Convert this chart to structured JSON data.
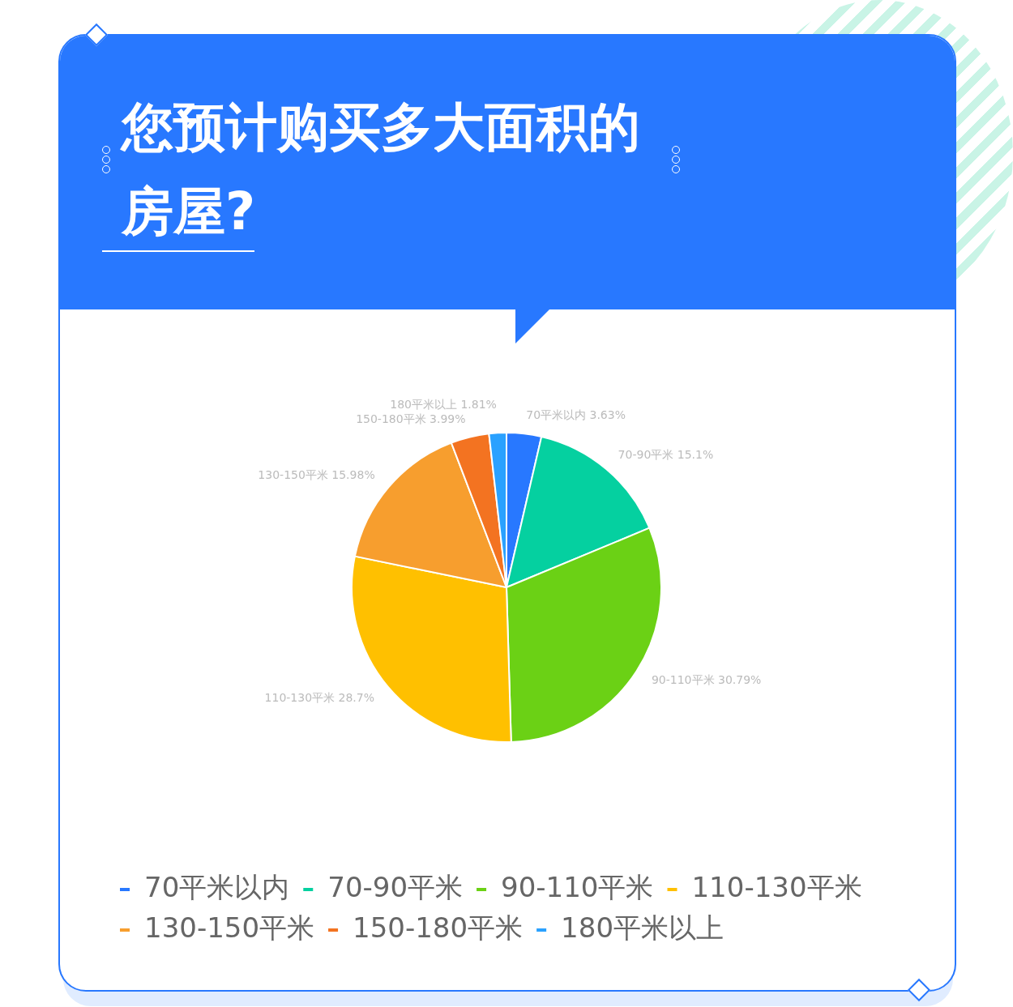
{
  "chart_data": {
    "type": "pie",
    "title": "您预计购买多大面积的房屋?",
    "categories": [
      "70平米以内",
      "70-90平米",
      "90-110平米",
      "110-130平米",
      "130-150平米",
      "150-180平米",
      "180平米以上"
    ],
    "values": [
      3.63,
      15.1,
      30.79,
      28.7,
      15.98,
      3.99,
      1.81
    ],
    "colors": [
      "#2878ff",
      "#05d0a0",
      "#6bd115",
      "#ffc000",
      "#f79e2e",
      "#f37321",
      "#2aa1ff"
    ],
    "value_labels": [
      "3.63%",
      "15.1%",
      "30.79%",
      "28.7%",
      "15.98%",
      "3.99%",
      "1.81%"
    ],
    "legend": "bottom"
  }
}
